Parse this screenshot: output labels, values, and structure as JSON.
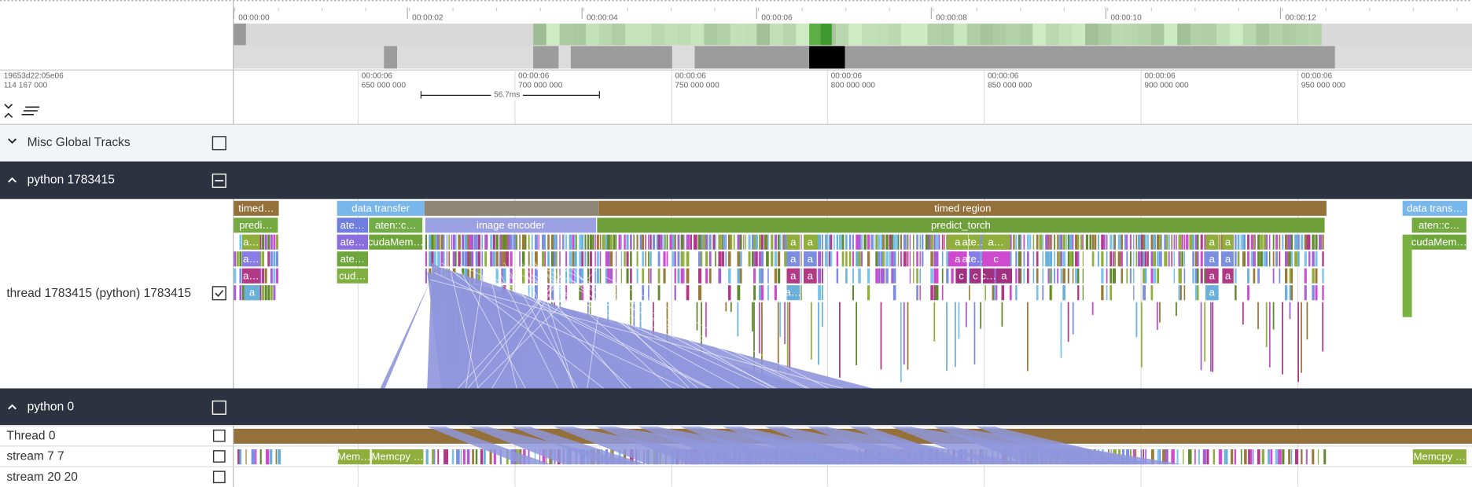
{
  "overview": {
    "ticks": [
      "00:00:00",
      "00:00:02",
      "00:00:04",
      "00:00:06",
      "00:00:08",
      "00:00:10",
      "00:00:12"
    ]
  },
  "timeline": {
    "origin": "19653d22:05e06",
    "origin_ns": "114 167 000",
    "ticks": [
      {
        "time": "00:00:06",
        "ns": "650 000 000"
      },
      {
        "time": "00:00:06",
        "ns": "700 000 000"
      },
      {
        "time": "00:00:06",
        "ns": "750 000 000"
      },
      {
        "time": "00:00:06",
        "ns": "800 000 000"
      },
      {
        "time": "00:00:06",
        "ns": "850 000 000"
      },
      {
        "time": "00:00:06",
        "ns": "900 000 000"
      },
      {
        "time": "00:00:06",
        "ns": "950 000 000"
      }
    ],
    "measure": "56.7ms"
  },
  "tracks": [
    {
      "name": "Misc Global Tracks"
    },
    {
      "name": "python 1783415"
    },
    {
      "name": "thread 1783415 (python) 1783415",
      "slices": [
        "timed…",
        "data transfer",
        "timed region",
        "data trans…",
        "predi…",
        "ate…",
        "aten::c…",
        "image encoder",
        "predict_torch",
        "aten::c…",
        "ate…",
        "cudaMem…",
        "cudaMem…",
        "ate…",
        "cud…",
        "a…",
        "a…",
        "a…",
        "a",
        "a",
        "a",
        "a",
        "a",
        "a",
        "a",
        "a…",
        "a",
        "ate…",
        "a…",
        "a",
        "ate…",
        "c",
        "c",
        "c",
        "c…",
        "a",
        "a",
        "a",
        "a",
        "a",
        "a",
        "a",
        "a"
      ]
    },
    {
      "name": "python 0"
    },
    {
      "name": "Thread 0"
    },
    {
      "name": "stream 7 7",
      "slices": [
        "Mem…",
        "Memcpy …",
        "Memcpy …"
      ]
    },
    {
      "name": "stream 20 20"
    }
  ]
}
